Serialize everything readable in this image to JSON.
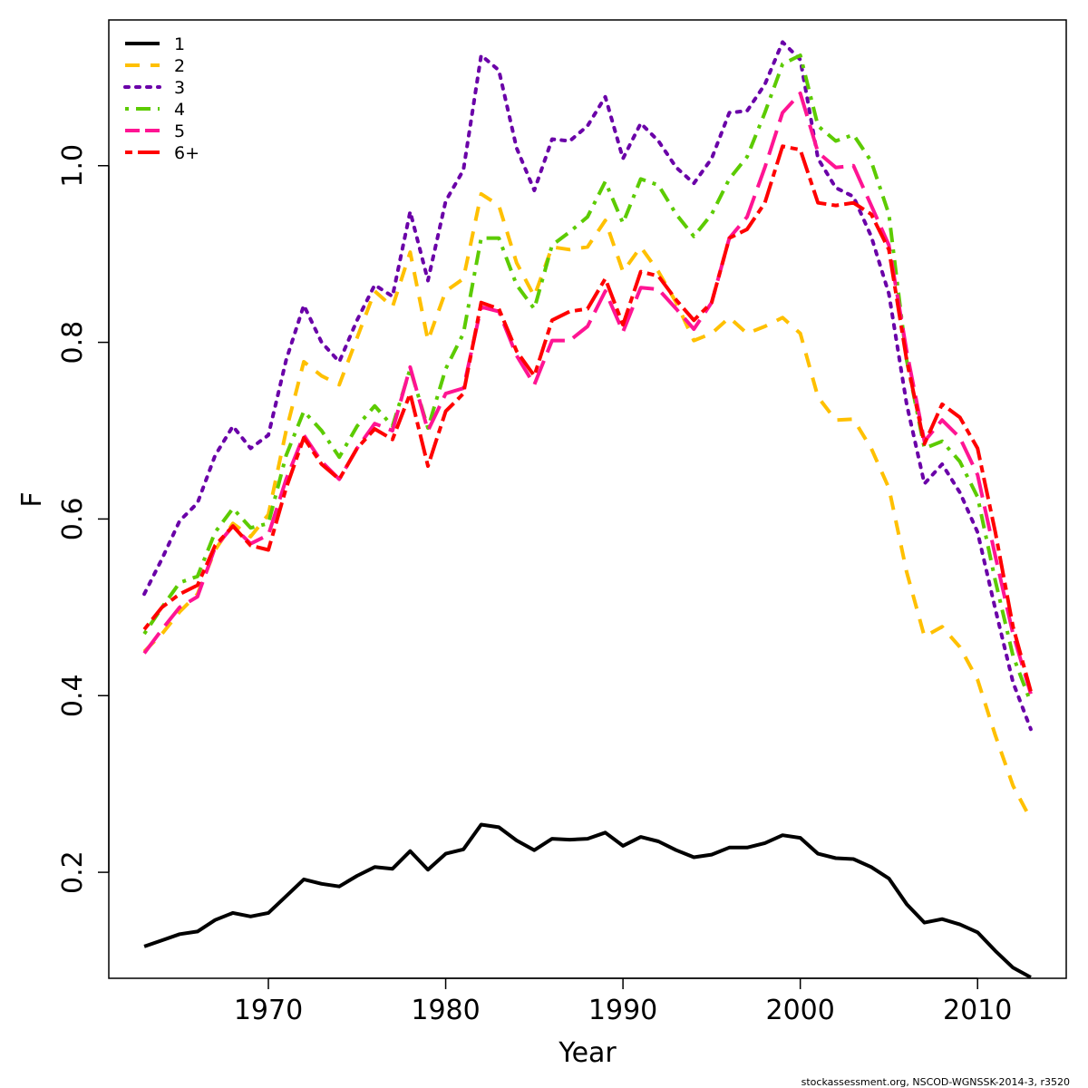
{
  "chart_data": {
    "type": "line",
    "xlabel": "Year",
    "ylabel": "F",
    "xlim": [
      1961,
      2015
    ],
    "ylim": [
      0.08,
      1.165
    ],
    "x_ticks": [
      "1970",
      "1980",
      "1990",
      "2000",
      "2010"
    ],
    "y_ticks": [
      "0.2",
      "0.4",
      "0.6",
      "0.8",
      "1.0"
    ],
    "legend_position": "top-left",
    "grid": false,
    "credit": "stockassessment.org, NSCOD-WGNSSK-2014-3, r3520",
    "x": [
      1963,
      1964,
      1965,
      1966,
      1967,
      1968,
      1969,
      1970,
      1971,
      1972,
      1973,
      1974,
      1975,
      1976,
      1977,
      1978,
      1979,
      1980,
      1981,
      1982,
      1983,
      1984,
      1985,
      1986,
      1987,
      1988,
      1989,
      1990,
      1991,
      1992,
      1993,
      1994,
      1995,
      1996,
      1997,
      1998,
      1999,
      2000,
      2001,
      2002,
      2003,
      2004,
      2005,
      2006,
      2007,
      2008,
      2009,
      2010,
      2011,
      2012,
      2013
    ],
    "series": [
      {
        "name": "1",
        "color": "#000000",
        "dash": "solid",
        "values": [
          0.116,
          0.123,
          0.13,
          0.133,
          0.146,
          0.154,
          0.15,
          0.154,
          0.173,
          0.192,
          0.187,
          0.184,
          0.196,
          0.206,
          0.204,
          0.224,
          0.203,
          0.221,
          0.226,
          0.254,
          0.251,
          0.236,
          0.225,
          0.238,
          0.237,
          0.238,
          0.245,
          0.23,
          0.24,
          0.235,
          0.225,
          0.217,
          0.22,
          0.228,
          0.228,
          0.233,
          0.242,
          0.239,
          0.221,
          0.216,
          0.215,
          0.206,
          0.193,
          0.164,
          0.143,
          0.147,
          0.141,
          0.132,
          0.111,
          0.092,
          0.081
        ]
      },
      {
        "name": "2",
        "color": "#FFC000",
        "dash": "dashed",
        "values": [
          0.45,
          0.47,
          0.495,
          0.515,
          0.565,
          0.595,
          0.58,
          0.605,
          0.7,
          0.778,
          0.762,
          0.752,
          0.805,
          0.858,
          0.84,
          0.902,
          0.802,
          0.858,
          0.872,
          0.968,
          0.955,
          0.89,
          0.852,
          0.908,
          0.905,
          0.908,
          0.938,
          0.88,
          0.908,
          0.88,
          0.845,
          0.802,
          0.81,
          0.828,
          0.81,
          0.818,
          0.828,
          0.81,
          0.738,
          0.712,
          0.713,
          0.68,
          0.635,
          0.54,
          0.467,
          0.478,
          0.455,
          0.418,
          0.355,
          0.298,
          0.26
        ]
      },
      {
        "name": "3",
        "color": "#6A00A8",
        "dash": "dotted",
        "values": [
          0.515,
          0.555,
          0.598,
          0.618,
          0.672,
          0.705,
          0.68,
          0.695,
          0.78,
          0.842,
          0.8,
          0.778,
          0.825,
          0.865,
          0.852,
          0.948,
          0.87,
          0.96,
          0.995,
          1.125,
          1.108,
          1.02,
          0.972,
          1.03,
          1.028,
          1.045,
          1.078,
          1.008,
          1.048,
          1.028,
          0.998,
          0.98,
          1.008,
          1.06,
          1.062,
          1.092,
          1.14,
          1.12,
          1.008,
          0.975,
          0.965,
          0.92,
          0.855,
          0.73,
          0.64,
          0.662,
          0.63,
          0.585,
          0.498,
          0.415,
          0.362
        ]
      },
      {
        "name": "4",
        "color": "#5CCB00",
        "dash": "dashdot",
        "values": [
          0.47,
          0.5,
          0.528,
          0.535,
          0.585,
          0.612,
          0.59,
          0.595,
          0.672,
          0.722,
          0.7,
          0.67,
          0.705,
          0.728,
          0.705,
          0.77,
          0.703,
          0.77,
          0.81,
          0.918,
          0.918,
          0.865,
          0.838,
          0.91,
          0.925,
          0.942,
          0.982,
          0.935,
          0.985,
          0.978,
          0.945,
          0.92,
          0.945,
          0.985,
          1.01,
          1.06,
          1.115,
          1.125,
          1.045,
          1.028,
          1.035,
          1.005,
          0.945,
          0.78,
          0.68,
          0.688,
          0.665,
          0.625,
          0.53,
          0.445,
          0.392
        ]
      },
      {
        "name": "5",
        "color": "#FF1493",
        "dash": "longdash",
        "values": [
          0.448,
          0.475,
          0.5,
          0.512,
          0.568,
          0.592,
          0.572,
          0.582,
          0.645,
          0.695,
          0.665,
          0.645,
          0.68,
          0.708,
          0.7,
          0.772,
          0.7,
          0.742,
          0.748,
          0.84,
          0.835,
          0.785,
          0.752,
          0.802,
          0.802,
          0.818,
          0.858,
          0.812,
          0.862,
          0.86,
          0.838,
          0.815,
          0.845,
          0.918,
          0.942,
          0.998,
          1.06,
          1.082,
          1.015,
          0.998,
          1.0,
          0.955,
          0.91,
          0.79,
          0.688,
          0.712,
          0.692,
          0.65,
          0.558,
          0.47,
          0.402
        ]
      },
      {
        "name": "6+",
        "color": "#FF0000",
        "dash": "twodash",
        "values": [
          0.475,
          0.5,
          0.515,
          0.525,
          0.57,
          0.592,
          0.57,
          0.565,
          0.635,
          0.692,
          0.662,
          0.645,
          0.68,
          0.702,
          0.69,
          0.742,
          0.66,
          0.722,
          0.742,
          0.845,
          0.838,
          0.79,
          0.762,
          0.825,
          0.835,
          0.838,
          0.872,
          0.82,
          0.88,
          0.875,
          0.848,
          0.825,
          0.845,
          0.918,
          0.928,
          0.958,
          1.022,
          1.018,
          0.958,
          0.955,
          0.958,
          0.945,
          0.905,
          0.78,
          0.685,
          0.73,
          0.715,
          0.68,
          0.585,
          0.478,
          0.405
        ]
      }
    ]
  }
}
